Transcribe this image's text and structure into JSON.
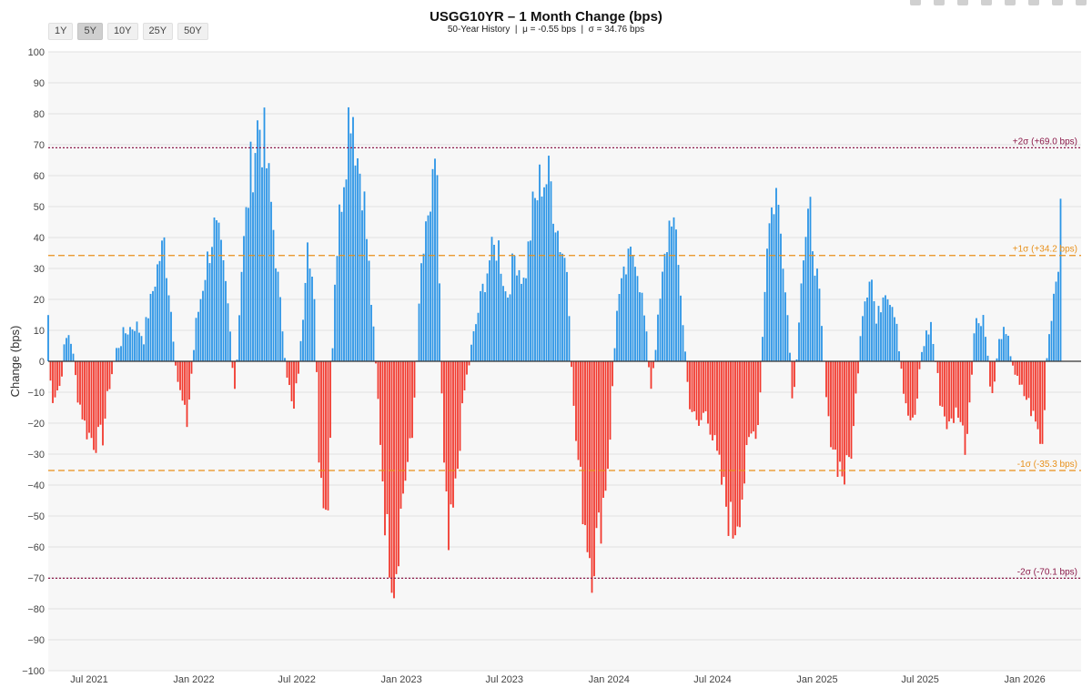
{
  "range_buttons": [
    {
      "label": "1Y",
      "active": false
    },
    {
      "label": "5Y",
      "active": true
    },
    {
      "label": "10Y",
      "active": false
    },
    {
      "label": "25Y",
      "active": false
    },
    {
      "label": "50Y",
      "active": false
    }
  ],
  "toolbar": {
    "icons": [
      "camera-icon",
      "zoom-icon",
      "pan-icon",
      "plus-icon",
      "minus-icon",
      "autoscale-icon",
      "reset-icon",
      "bar-chart-icon"
    ]
  },
  "chart_data": {
    "type": "bar",
    "title": "USGG10YR – 1 Month Change (bps)",
    "subtitle": "50-Year History  |  μ = -0.55 bps  |  σ = 34.76 bps",
    "xlabel": "",
    "ylabel": "Change (bps)",
    "ylim": [
      -100,
      100
    ],
    "y_ticks": [
      -100,
      -90,
      -80,
      -70,
      -60,
      -50,
      -40,
      -30,
      -20,
      -10,
      0,
      10,
      20,
      30,
      40,
      50,
      60,
      70,
      80,
      90,
      100
    ],
    "x_range": [
      "2021-04-20",
      "2026-04-10"
    ],
    "x_ticks": [
      {
        "date": "2021-07-01",
        "label": "Jul 2021"
      },
      {
        "date": "2022-01-01",
        "label": "Jan 2022"
      },
      {
        "date": "2022-07-01",
        "label": "Jul 2022"
      },
      {
        "date": "2023-01-01",
        "label": "Jan 2023"
      },
      {
        "date": "2023-07-01",
        "label": "Jul 2023"
      },
      {
        "date": "2024-01-01",
        "label": "Jan 2024"
      },
      {
        "date": "2024-07-01",
        "label": "Jul 2024"
      },
      {
        "date": "2025-01-01",
        "label": "Jan 2025"
      },
      {
        "date": "2025-07-01",
        "label": "Jul 2025"
      },
      {
        "date": "2026-01-01",
        "label": "Jan 2026"
      }
    ],
    "positive_color": "#2b95e6",
    "negative_color": "#f2392e",
    "reference_lines": [
      {
        "value": 69.0,
        "label": "+2σ (+69.0 bps)",
        "color": "#8b1a4a",
        "style": "dotted"
      },
      {
        "value": 34.2,
        "label": "+1σ (+34.2 bps)",
        "color": "#e8901a",
        "style": "dashed"
      },
      {
        "value": -35.3,
        "label": "-1σ (-35.3 bps)",
        "color": "#e8901a",
        "style": "dashed"
      },
      {
        "value": -70.1,
        "label": "-2σ (-70.1 bps)",
        "color": "#8b1a4a",
        "style": "dotted"
      }
    ],
    "series_anchors": [
      [
        "2021-04-20",
        15
      ],
      [
        "2021-04-25",
        -12
      ],
      [
        "2021-05-10",
        -8
      ],
      [
        "2021-05-20",
        6
      ],
      [
        "2021-05-28",
        10
      ],
      [
        "2021-06-10",
        -10
      ],
      [
        "2021-06-25",
        -22
      ],
      [
        "2021-07-10",
        -26
      ],
      [
        "2021-07-25",
        -24
      ],
      [
        "2021-08-05",
        -8
      ],
      [
        "2021-08-20",
        5
      ],
      [
        "2021-09-05",
        10
      ],
      [
        "2021-09-20",
        12
      ],
      [
        "2021-10-05",
        8
      ],
      [
        "2021-10-20",
        22
      ],
      [
        "2021-11-01",
        33
      ],
      [
        "2021-11-10",
        38
      ],
      [
        "2021-11-20",
        20
      ],
      [
        "2021-12-05",
        -8
      ],
      [
        "2021-12-20",
        -20
      ],
      [
        "2022-01-05",
        12
      ],
      [
        "2022-01-20",
        28
      ],
      [
        "2022-02-05",
        43
      ],
      [
        "2022-02-15",
        38
      ],
      [
        "2022-03-01",
        20
      ],
      [
        "2022-03-15",
        -10
      ],
      [
        "2022-03-25",
        28
      ],
      [
        "2022-04-10",
        60
      ],
      [
        "2022-04-25",
        78
      ],
      [
        "2022-05-05",
        70
      ],
      [
        "2022-05-20",
        45
      ],
      [
        "2022-06-01",
        20
      ],
      [
        "2022-06-15",
        -5
      ],
      [
        "2022-06-25",
        -18
      ],
      [
        "2022-07-10",
        8
      ],
      [
        "2022-07-20",
        45
      ],
      [
        "2022-08-01",
        18
      ],
      [
        "2022-08-10",
        -35
      ],
      [
        "2022-08-25",
        -48
      ],
      [
        "2022-09-05",
        25
      ],
      [
        "2022-09-20",
        60
      ],
      [
        "2022-10-05",
        88
      ],
      [
        "2022-10-15",
        67
      ],
      [
        "2022-10-25",
        58
      ],
      [
        "2022-11-05",
        30
      ],
      [
        "2022-11-20",
        -10
      ],
      [
        "2022-12-05",
        -55
      ],
      [
        "2022-12-20",
        -70
      ],
      [
        "2023-01-05",
        -40
      ],
      [
        "2023-01-20",
        -25
      ],
      [
        "2023-02-05",
        30
      ],
      [
        "2023-02-20",
        48
      ],
      [
        "2023-03-05",
        62
      ],
      [
        "2023-03-15",
        -30
      ],
      [
        "2023-03-25",
        -62
      ],
      [
        "2023-04-05",
        -45
      ],
      [
        "2023-04-20",
        -12
      ],
      [
        "2023-05-05",
        5
      ],
      [
        "2023-05-20",
        20
      ],
      [
        "2023-06-05",
        33
      ],
      [
        "2023-06-20",
        38
      ],
      [
        "2023-07-05",
        20
      ],
      [
        "2023-07-20",
        35
      ],
      [
        "2023-08-05",
        25
      ],
      [
        "2023-08-20",
        48
      ],
      [
        "2023-09-05",
        60
      ],
      [
        "2023-09-20",
        58
      ],
      [
        "2023-10-05",
        40
      ],
      [
        "2023-10-20",
        30
      ],
      [
        "2023-11-01",
        -20
      ],
      [
        "2023-11-15",
        -45
      ],
      [
        "2023-12-01",
        -65
      ],
      [
        "2023-12-15",
        -55
      ],
      [
        "2024-01-01",
        -30
      ],
      [
        "2024-01-15",
        18
      ],
      [
        "2024-02-01",
        30
      ],
      [
        "2024-02-15",
        37
      ],
      [
        "2024-03-01",
        18
      ],
      [
        "2024-03-15",
        -8
      ],
      [
        "2024-04-05",
        28
      ],
      [
        "2024-04-20",
        50
      ],
      [
        "2024-05-05",
        25
      ],
      [
        "2024-05-20",
        -12
      ],
      [
        "2024-06-05",
        -22
      ],
      [
        "2024-06-20",
        -15
      ],
      [
        "2024-07-05",
        -28
      ],
      [
        "2024-07-20",
        -42
      ],
      [
        "2024-08-05",
        -55
      ],
      [
        "2024-08-20",
        -45
      ],
      [
        "2024-09-05",
        -25
      ],
      [
        "2024-09-20",
        -20
      ],
      [
        "2024-10-05",
        40
      ],
      [
        "2024-10-20",
        56
      ],
      [
        "2024-11-05",
        30
      ],
      [
        "2024-11-20",
        -15
      ],
      [
        "2024-12-05",
        30
      ],
      [
        "2024-12-20",
        47
      ],
      [
        "2025-01-05",
        20
      ],
      [
        "2025-01-20",
        -20
      ],
      [
        "2025-02-05",
        -32
      ],
      [
        "2025-02-20",
        -38
      ],
      [
        "2025-03-05",
        -25
      ],
      [
        "2025-03-20",
        15
      ],
      [
        "2025-04-05",
        30
      ],
      [
        "2025-04-15",
        12
      ],
      [
        "2025-05-01",
        25
      ],
      [
        "2025-05-20",
        15
      ],
      [
        "2025-06-05",
        -15
      ],
      [
        "2025-06-20",
        -22
      ],
      [
        "2025-07-05",
        5
      ],
      [
        "2025-07-20",
        12
      ],
      [
        "2025-08-05",
        -12
      ],
      [
        "2025-08-20",
        -22
      ],
      [
        "2025-09-05",
        -15
      ],
      [
        "2025-09-20",
        -28
      ],
      [
        "2025-10-05",
        12
      ],
      [
        "2025-10-20",
        15
      ],
      [
        "2025-11-05",
        -12
      ],
      [
        "2025-11-20",
        10
      ],
      [
        "2025-12-05",
        5
      ],
      [
        "2025-12-20",
        -8
      ],
      [
        "2026-01-05",
        -12
      ],
      [
        "2026-01-20",
        -20
      ],
      [
        "2026-02-01",
        -28
      ],
      [
        "2026-02-10",
        5
      ],
      [
        "2026-02-20",
        20
      ],
      [
        "2026-03-01",
        35
      ],
      [
        "2026-03-05",
        45
      ]
    ]
  }
}
